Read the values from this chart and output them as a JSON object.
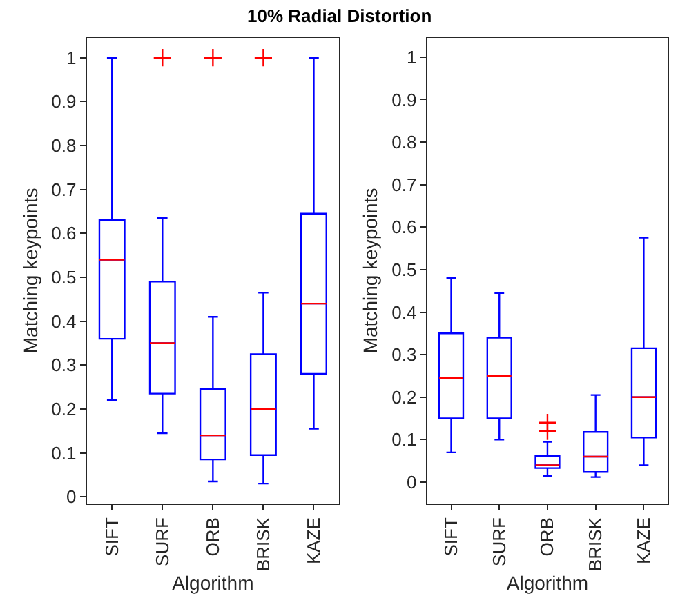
{
  "chart_data": [
    {
      "type": "box",
      "title": "10% Radial Distortion",
      "xlabel": "Algorithm",
      "ylabel": "Matching keypoints",
      "categories": [
        "SIFT",
        "SURF",
        "ORB",
        "BRISK",
        "KAZE"
      ],
      "color": "#0000ff",
      "ylim": [
        -0.015,
        1.045
      ],
      "yticks": [
        0,
        0.1,
        0.2,
        0.3,
        0.4,
        0.5,
        0.6,
        0.7,
        0.8,
        0.9,
        1
      ],
      "marker": "cross",
      "boxes": [
        {
          "low": 0.22,
          "q1": 0.36,
          "median": 0.54,
          "q3": 0.63,
          "high": 1.0
        },
        {
          "low": 0.145,
          "q1": 0.235,
          "median": 0.35,
          "q3": 0.49,
          "high": 0.635,
          "outliers": [
            1.0
          ]
        },
        {
          "low": 0.035,
          "q1": 0.085,
          "median": 0.14,
          "q3": 0.245,
          "high": 0.41,
          "outliers": [
            1.0
          ]
        },
        {
          "low": 0.03,
          "q1": 0.095,
          "median": 0.2,
          "q3": 0.325,
          "high": 0.465,
          "outliers": [
            1.0
          ]
        },
        {
          "low": 0.155,
          "q1": 0.28,
          "median": 0.44,
          "q3": 0.645,
          "high": 1.0
        }
      ]
    },
    {
      "type": "box",
      "xlabel": "Algorithm",
      "ylabel": "Matching keypoints",
      "categories": [
        "SIFT",
        "SURF",
        "ORB",
        "BRISK",
        "KAZE"
      ],
      "color": "#0000ff",
      "ylim": [
        -0.05,
        1.045
      ],
      "yticks": [
        0,
        0.1,
        0.2,
        0.3,
        0.4,
        0.5,
        0.6,
        0.7,
        0.8,
        0.9,
        1
      ],
      "marker": "cross",
      "boxes": [
        {
          "low": 0.07,
          "q1": 0.15,
          "median": 0.245,
          "q3": 0.35,
          "high": 0.48
        },
        {
          "low": 0.1,
          "q1": 0.15,
          "median": 0.25,
          "q3": 0.34,
          "high": 0.445
        },
        {
          "low": 0.015,
          "q1": 0.033,
          "median": 0.04,
          "q3": 0.062,
          "high": 0.095,
          "outliers": [
            0.12,
            0.14
          ]
        },
        {
          "low": 0.012,
          "q1": 0.024,
          "median": 0.06,
          "q3": 0.118,
          "high": 0.205
        },
        {
          "low": 0.04,
          "q1": 0.105,
          "median": 0.2,
          "q3": 0.315,
          "high": 0.575
        }
      ]
    }
  ]
}
